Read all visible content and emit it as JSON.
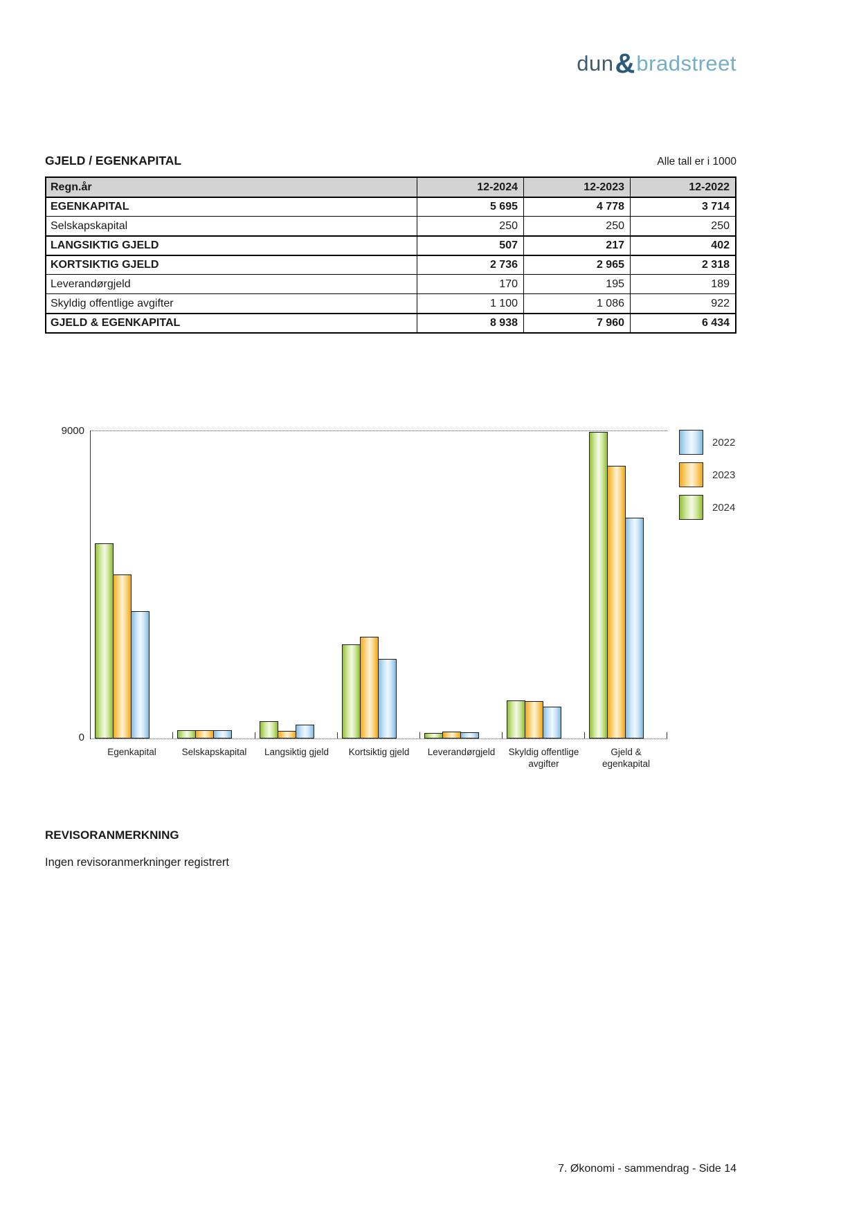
{
  "logo": {
    "part1": "dun",
    "amp": "&",
    "part2": "bradstreet"
  },
  "header": {
    "title": "GJELD / EGENKAPITAL",
    "note": "Alle tall er i 1000"
  },
  "table": {
    "columns": [
      "Regn.år",
      "12-2024",
      "12-2023",
      "12-2022"
    ],
    "rows": [
      {
        "label": "EGENKAPITAL",
        "bold": true,
        "values": [
          "5 695",
          "4 778",
          "3 714"
        ]
      },
      {
        "label": "Selskapskapital",
        "bold": false,
        "values": [
          "250",
          "250",
          "250"
        ]
      },
      {
        "label": "LANGSIKTIG GJELD",
        "bold": true,
        "values": [
          "507",
          "217",
          "402"
        ]
      },
      {
        "label": "KORTSIKTIG GJELD",
        "bold": true,
        "values": [
          "2 736",
          "2 965",
          "2 318"
        ]
      },
      {
        "label": "Leverandørgjeld",
        "bold": false,
        "values": [
          "170",
          "195",
          "189"
        ]
      },
      {
        "label": "Skyldig offentlige avgifter",
        "bold": false,
        "values": [
          "1 100",
          "1 086",
          "922"
        ]
      },
      {
        "label": "GJELD & EGENKAPITAL",
        "bold": true,
        "values": [
          "8 938",
          "7 960",
          "6 434"
        ]
      }
    ]
  },
  "chart_data": {
    "type": "bar",
    "categories": [
      "Egenkapital",
      "Selskapskapital",
      "Langsiktig gjeld",
      "Kortsiktig gjeld",
      "Leverandørgjeld",
      "Skyldig offentlige avgifter",
      "Gjeld & egenkapital"
    ],
    "category_display": [
      "Egenkapital",
      "Selskapskapital",
      "Langsiktig gjeld",
      "Kortsiktig gjeld",
      "Leverandørgjeld",
      "Skyldig offentlige\navgifter",
      "Gjeld &\negenkapital"
    ],
    "series": [
      {
        "name": "2024",
        "color": "#9cc93c",
        "values": [
          5695,
          250,
          507,
          2736,
          170,
          1100,
          8938
        ]
      },
      {
        "name": "2023",
        "color": "#f5b122",
        "values": [
          4778,
          250,
          217,
          2965,
          195,
          1086,
          7960
        ]
      },
      {
        "name": "2022",
        "color": "#8fc3e8",
        "values": [
          3714,
          250,
          402,
          2318,
          189,
          922,
          6434
        ]
      }
    ],
    "bar_order_left_to_right": [
      "2024",
      "2023",
      "2022"
    ],
    "legend_order_top_to_bottom": [
      "2022",
      "2023",
      "2024"
    ],
    "legend_position": "top-right",
    "ylim": [
      0,
      9000
    ],
    "ymax_label": "9000",
    "ymin_label": "0",
    "grid": "dotted horizontal line at 9000, dotted baseline at 0",
    "title": "",
    "xlabel": "",
    "ylabel": ""
  },
  "revisor": {
    "heading": "REVISORANMERKNING",
    "text": "Ingen revisoranmerkninger registrert"
  },
  "footer": {
    "text": "7. Økonomi - sammendrag - Side 14"
  }
}
